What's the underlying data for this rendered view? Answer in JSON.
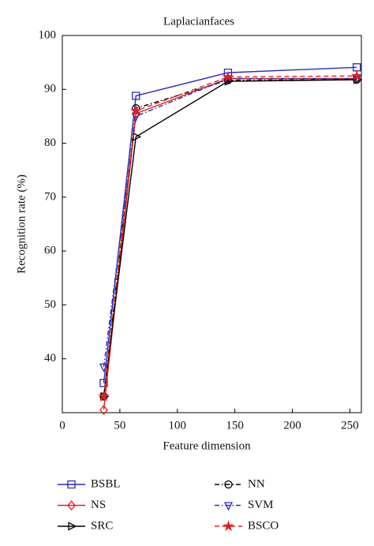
{
  "chart_data": {
    "type": "line",
    "title": "Laplacianfaces",
    "x_label": "Feature dimension",
    "y_label": "Recognition rate (%)",
    "x": [
      36,
      64,
      144,
      256
    ],
    "xlim": [
      0,
      260
    ],
    "xticks": [
      0,
      50,
      100,
      150,
      200,
      250
    ],
    "ylim": [
      30,
      100
    ],
    "yticks": [
      40,
      50,
      60,
      70,
      80,
      90,
      100
    ],
    "series": [
      {
        "name": "BSBL",
        "color": "#2a2ab8",
        "dash": "solid",
        "marker": "square",
        "values": [
          35.5,
          88.8,
          93.1,
          94.1
        ]
      },
      {
        "name": "NN",
        "color": "#000000",
        "dash": "dashdot",
        "marker": "circle",
        "values": [
          33,
          86.5,
          91.7,
          91.8
        ]
      },
      {
        "name": "NS",
        "color": "#e02020",
        "dash": "solid",
        "marker": "diamond",
        "values": [
          30.5,
          85.5,
          92,
          92
        ]
      },
      {
        "name": "SVM",
        "color": "#2a2ab8",
        "dash": "dashdot",
        "marker": "triangle-down",
        "values": [
          38.5,
          85,
          92,
          92
        ]
      },
      {
        "name": "SRC",
        "color": "#000000",
        "dash": "solid",
        "marker": "triangle-right",
        "values": [
          33,
          81.2,
          91.5,
          91.8
        ]
      },
      {
        "name": "BSCO",
        "color": "#e02020",
        "dash": "dashed",
        "marker": "star",
        "values": [
          33,
          86,
          92.3,
          92.5
        ]
      }
    ]
  }
}
